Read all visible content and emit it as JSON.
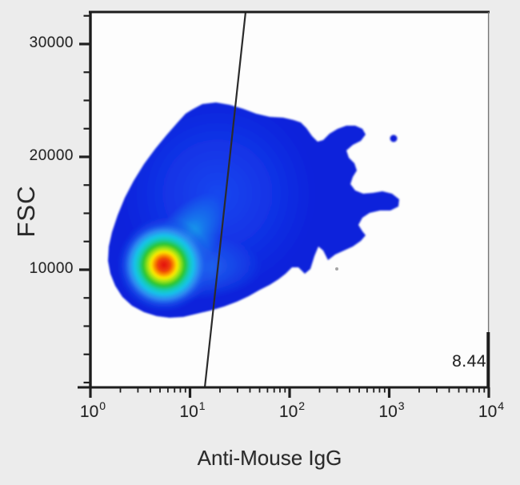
{
  "chart_data": {
    "type": "heatmap",
    "subtype": "flow cytometry pseudocolor density plot",
    "title": "",
    "xlabel": "Anti-Mouse IgG",
    "ylabel": "FSC",
    "x_scale": "log10",
    "xlim_decades": [
      0,
      4
    ],
    "xtick_base": "10",
    "xtick_exponents": [
      "0",
      "1",
      "2",
      "3",
      "4"
    ],
    "x_minor_multipliers": [
      2,
      3,
      4,
      5,
      6,
      7,
      8,
      9
    ],
    "y_scale": "linear",
    "ylim": [
      -400,
      32900
    ],
    "yticks": [
      10000,
      20000,
      30000
    ],
    "ytick_labels": [
      "10000",
      "20000",
      "30000"
    ],
    "y_minor_step": 2500,
    "grid": false,
    "legend": null,
    "gate": {
      "statistic_label": "8.44",
      "type": "near-vertical line gate",
      "x_value_at_fsc_0": 13,
      "x_value_at_fsc_top": 34
    },
    "population": {
      "name": "main population",
      "peak": {
        "x": 5.5,
        "fsc": 10400
      },
      "x_extent": [
        1.5,
        1400
      ],
      "fsc_extent": [
        2600,
        24500
      ],
      "percent_beyond_gate": "8.44"
    },
    "colors": {
      "density_low": "#0a21db",
      "density_mid_cyan": "#18c4e9",
      "density_mid_green": "#2cc62e",
      "density_peak_red": "#e30d0b",
      "plot_background": "#fdfdfd",
      "page_background": "#ececec",
      "axis": "#1f1f1f",
      "gate_line": "#2b2b2b"
    }
  }
}
